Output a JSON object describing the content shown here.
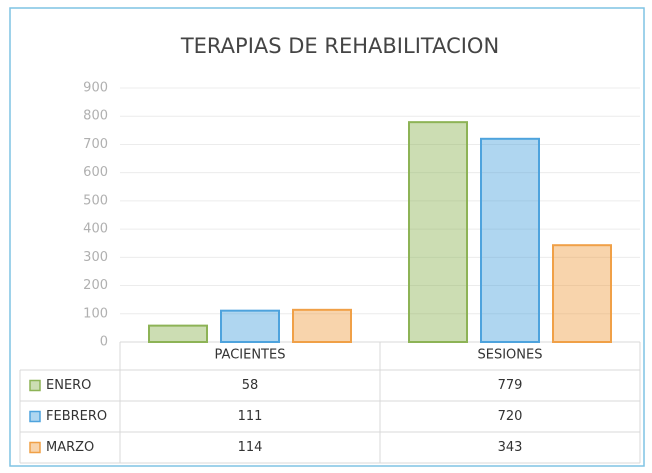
{
  "chart_data": {
    "type": "bar",
    "title": "TERAPIAS DE REHABILITACION",
    "categories": [
      "PACIENTES",
      "SESIONES"
    ],
    "series": [
      {
        "name": "ENERO",
        "color": "#8db356",
        "values": [
          58,
          779
        ]
      },
      {
        "name": "FEBRERO",
        "color": "#4ea3dd",
        "values": [
          111,
          720
        ]
      },
      {
        "name": "MARZO",
        "color": "#f0a047",
        "values": [
          114,
          343
        ]
      }
    ],
    "ylim": [
      0,
      900
    ],
    "yticks": [
      0,
      100,
      200,
      300,
      400,
      500,
      600,
      700,
      800,
      900
    ],
    "grid": true
  }
}
